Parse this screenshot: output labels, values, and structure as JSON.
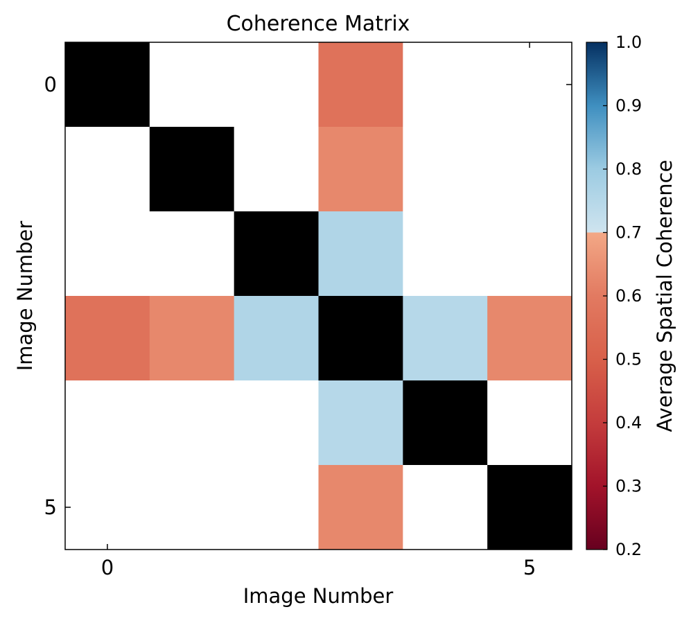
{
  "chart_data": {
    "type": "heatmap",
    "title": "Coherence Matrix",
    "xlabel": "Image Number",
    "ylabel": "Image Number",
    "x_ticks": [
      0,
      5
    ],
    "y_ticks": [
      0,
      5
    ],
    "rows": 6,
    "cols": 6,
    "matrix": [
      [
        null,
        null,
        null,
        0.57,
        null,
        null
      ],
      [
        null,
        null,
        null,
        0.63,
        null,
        null
      ],
      [
        null,
        null,
        null,
        0.76,
        null,
        null
      ],
      [
        0.57,
        0.63,
        0.76,
        null,
        0.75,
        0.63
      ],
      [
        null,
        null,
        null,
        0.75,
        null,
        null
      ],
      [
        null,
        null,
        null,
        0.63,
        null,
        null
      ]
    ],
    "diagonal_color": "#000000",
    "missing_color": "#ffffff",
    "colorbar": {
      "label": "Average Spatial Coherence",
      "min": 0.2,
      "max": 1.0,
      "ticks": [
        "0.2",
        "0.3",
        "0.4",
        "0.5",
        "0.6",
        "0.7",
        "0.8",
        "0.9",
        "1.0"
      ],
      "stops": [
        {
          "v": 0.2,
          "color": "#67001f"
        },
        {
          "v": 0.3,
          "color": "#a2132a"
        },
        {
          "v": 0.4,
          "color": "#c43c3c"
        },
        {
          "v": 0.5,
          "color": "#d8604a"
        },
        {
          "v": 0.6,
          "color": "#e27a61"
        },
        {
          "v": 0.7,
          "color": "#f3a886"
        },
        {
          "v": 0.7001,
          "color": "#cfe4ef"
        },
        {
          "v": 0.8,
          "color": "#9ccbe2"
        },
        {
          "v": 0.9,
          "color": "#3f8fc0"
        },
        {
          "v": 1.0,
          "color": "#053061"
        }
      ]
    }
  }
}
